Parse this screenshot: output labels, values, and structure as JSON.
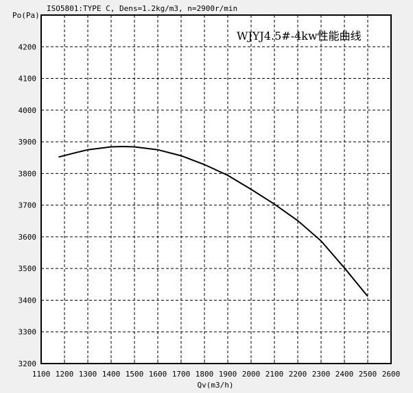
{
  "chart_data": {
    "type": "line",
    "title": "WJYJ4.5#-4kw性能曲线",
    "subtitle": "ISO5801:TYPE C, Dens=1.2kg/m3, n=2900r/min",
    "xlabel": "Qv(m3/h)",
    "ylabel": "Po(Pa)",
    "xlim": [
      1100,
      2600
    ],
    "ylim": [
      3200,
      4300
    ],
    "xticks": [
      1100,
      1200,
      1300,
      1400,
      1500,
      1600,
      1700,
      1800,
      1900,
      2000,
      2100,
      2200,
      2300,
      2400,
      2500,
      2600
    ],
    "yticks": [
      3200,
      3300,
      3400,
      3500,
      3600,
      3700,
      3800,
      3900,
      4000,
      4100,
      4200
    ],
    "grid": true,
    "series": [
      {
        "x": [
          1175,
          1250,
          1300,
          1400,
          1450,
          1500,
          1600,
          1700,
          1800,
          1900,
          2000,
          2100,
          2200,
          2300,
          2400,
          2500
        ],
        "y": [
          3852,
          3866,
          3875,
          3884,
          3885,
          3884,
          3875,
          3856,
          3828,
          3794,
          3750,
          3703,
          3651,
          3587,
          3502,
          3412
        ],
        "color": "#000000"
      }
    ],
    "title_color": "#e03030"
  }
}
